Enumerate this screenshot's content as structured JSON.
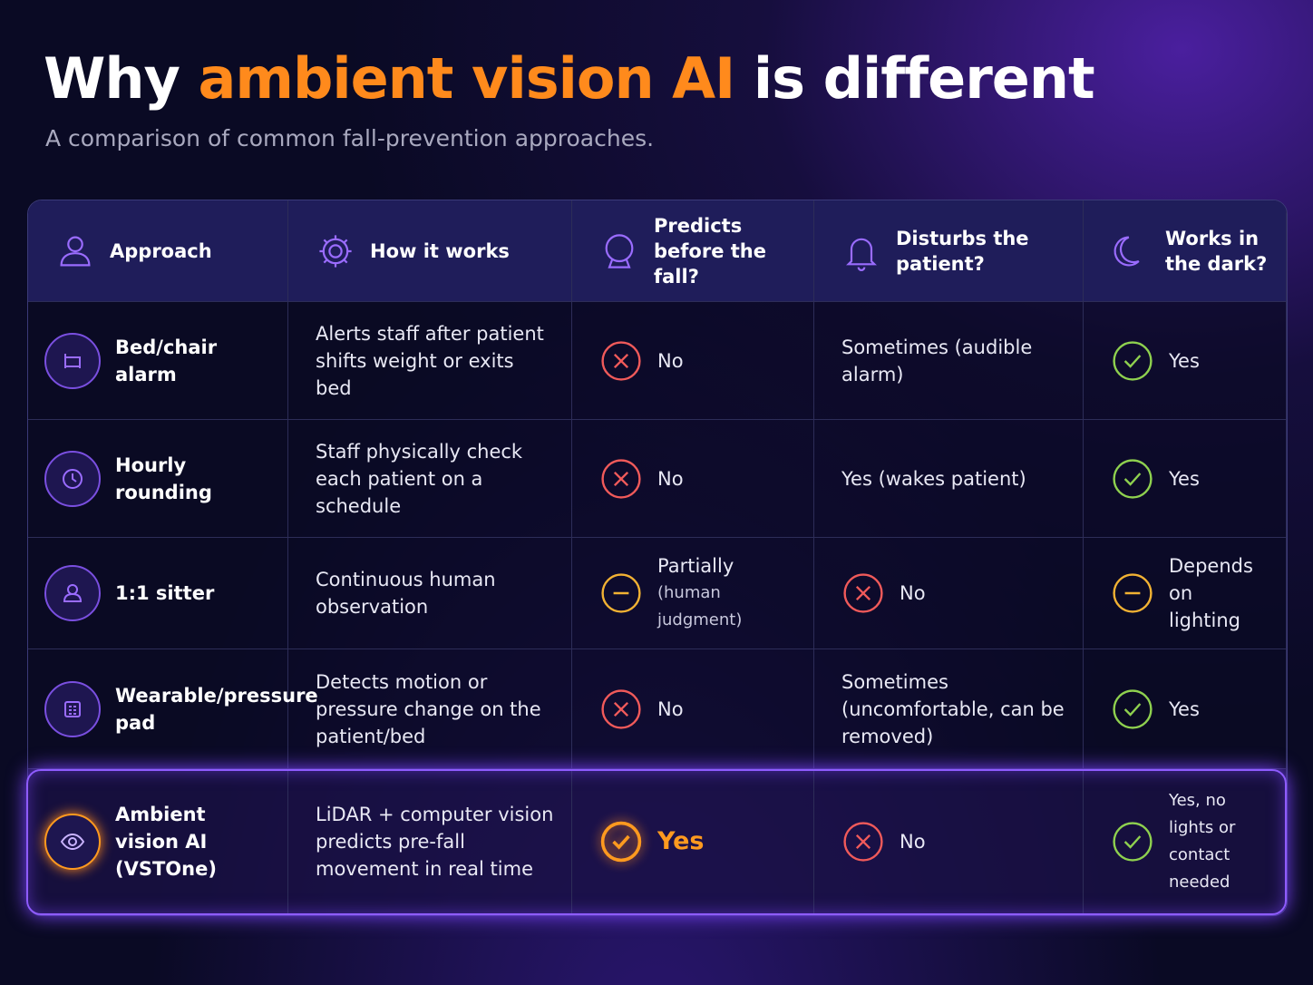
{
  "header": {
    "title": {
      "before": "Why",
      "highlight": "ambient vision AI",
      "after": "is different"
    },
    "subtitle": "A comparison of common fall-prevention approaches."
  },
  "table": {
    "columns": [
      "Approach",
      "How it works",
      "Predicts before the fall?",
      "Disturbs the patient?",
      "Works in the dark?"
    ],
    "rows": [
      {
        "approach": "Bed/chair alarm",
        "how": "Alerts staff after patient shifts weight or exits bed",
        "predicts": {
          "icon": "cross",
          "text": "No"
        },
        "disturbs": {
          "text": "Sometimes (audible alarm)"
        },
        "dark": {
          "icon": "check",
          "text": "Yes"
        }
      },
      {
        "approach": "Hourly rounding",
        "how": "Staff physically check each patient on a schedule",
        "predicts": {
          "icon": "cross",
          "text": "No"
        },
        "disturbs": {
          "text": "Yes (wakes patient)"
        },
        "dark": {
          "icon": "check",
          "text": "Yes"
        }
      },
      {
        "approach": "1:1 sitter",
        "how": "Continuous human observation",
        "predicts": {
          "icon": "dash",
          "text": "Partially",
          "note": "(human judgment)"
        },
        "disturbs": {
          "icon": "cross",
          "text": "No"
        },
        "dark": {
          "icon": "dash",
          "text": "Depends on lighting"
        }
      },
      {
        "approach": "Wearable/pressure pad",
        "how": "Detects motion or pressure change on the patient/bed",
        "predicts": {
          "icon": "cross",
          "text": "No"
        },
        "disturbs": {
          "text": "Sometimes (uncomfortable, can be removed)"
        },
        "dark": {
          "icon": "check",
          "text": "Yes"
        }
      },
      {
        "approach": "Ambient vision AI (VSTOne)",
        "how": "LiDAR + computer vision predicts pre-fall movement in real time",
        "predicts": {
          "icon": "check-bold",
          "text": "Yes"
        },
        "disturbs": {
          "icon": "cross",
          "text": "No"
        },
        "dark": {
          "icon": "check",
          "text": "Yes, no lights or contact needed"
        },
        "highlight": true
      }
    ]
  }
}
